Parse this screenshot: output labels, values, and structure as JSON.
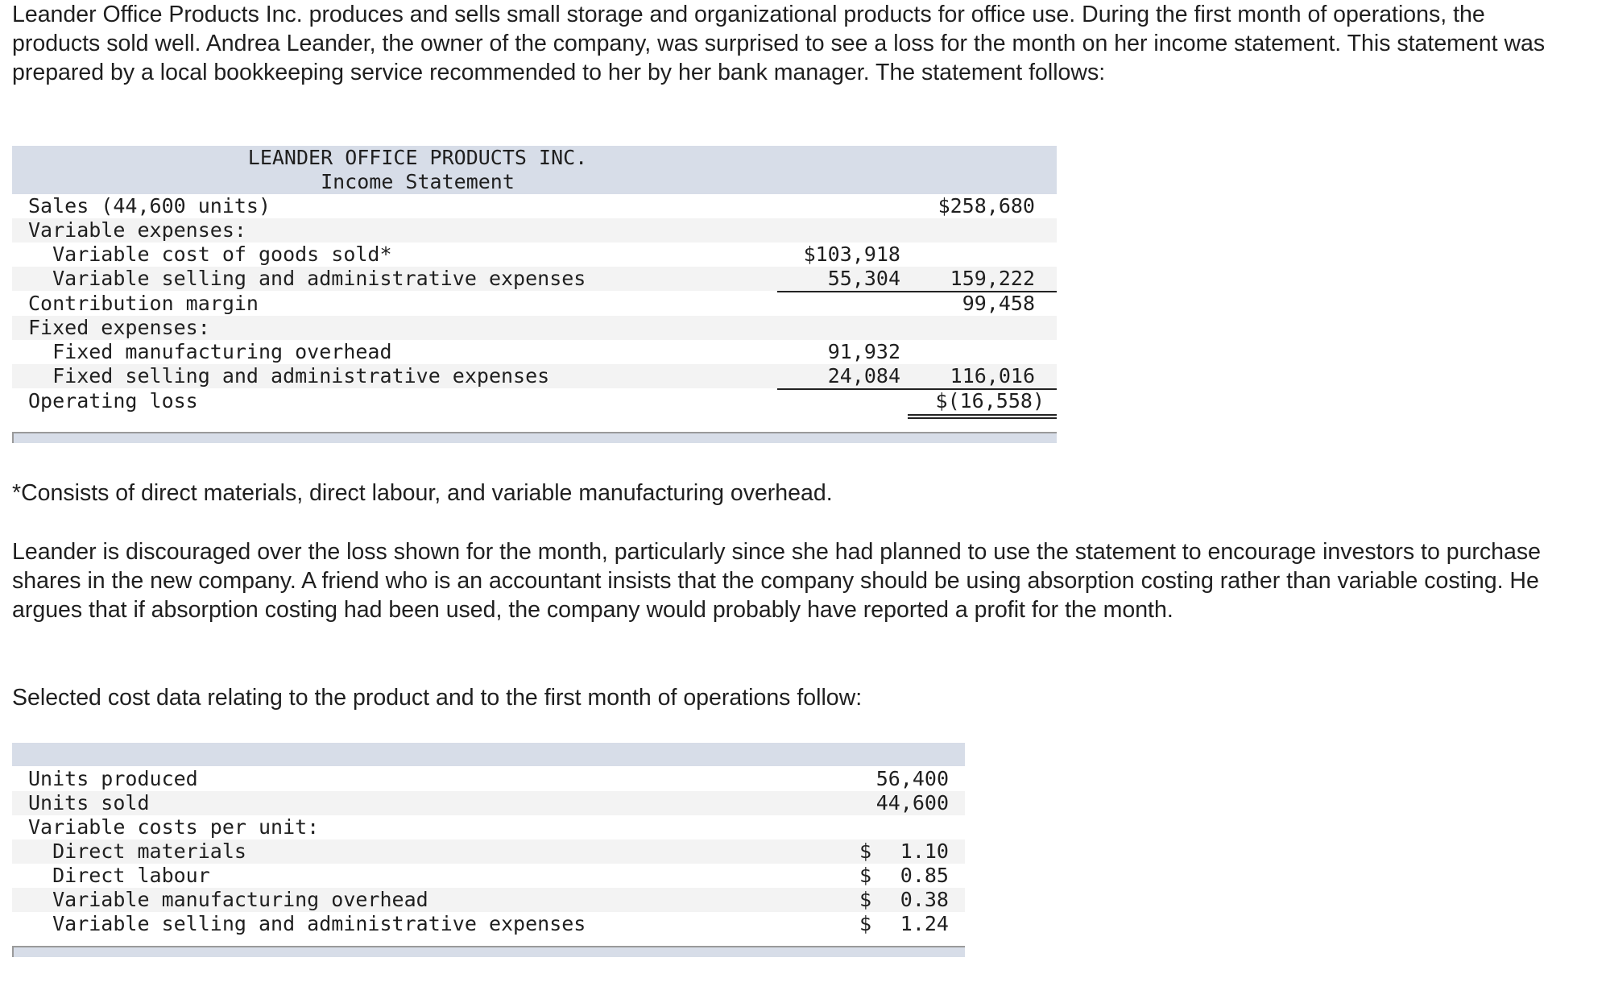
{
  "intro": "Leander Office Products Inc. produces and sells small storage and organizational products for office use. During the first month of operations, the products sold well. Andrea Leander, the owner of the company, was surprised to see a loss for the month on her income statement. This statement was prepared by a local bookkeeping service recommended to her by her bank manager. The statement follows:",
  "income_statement": {
    "company": "LEANDER OFFICE PRODUCTS INC.",
    "title": "Income Statement",
    "rows": [
      {
        "label": "Sales (44,600 units)",
        "c1": "",
        "c2": "$258,680"
      },
      {
        "label": "Variable expenses:",
        "c1": "",
        "c2": ""
      },
      {
        "label": "  Variable cost of goods sold*",
        "c1": "$103,918",
        "c2": ""
      },
      {
        "label": "  Variable selling and administrative expenses",
        "c1": "55,304",
        "c2": "159,222"
      },
      {
        "label": "Contribution margin",
        "c1": "",
        "c2": "99,458"
      },
      {
        "label": "Fixed expenses:",
        "c1": "",
        "c2": ""
      },
      {
        "label": "  Fixed manufacturing overhead",
        "c1": "91,932",
        "c2": ""
      },
      {
        "label": "  Fixed selling and administrative expenses",
        "c1": "24,084",
        "c2": "116,016"
      },
      {
        "label": "Operating loss",
        "c1": "",
        "c2": "$(16,558)"
      }
    ]
  },
  "footnote": "*Consists of direct materials, direct labour, and variable manufacturing overhead.",
  "discussion": "Leander is discouraged over the loss shown for the month, particularly since she had planned to use the statement to encourage investors to purchase shares in the new company. A friend who is an accountant insists that the company should be using absorption costing rather than variable costing. He argues that if absorption costing had been used, the company would probably have reported a profit for the month.",
  "cost_intro": "Selected cost data relating to the product and to the first month of operations follow:",
  "cost_data": {
    "rows": [
      {
        "label": "Units produced",
        "cur": "",
        "val": "56,400"
      },
      {
        "label": "Units sold",
        "cur": "",
        "val": "44,600"
      },
      {
        "label": "Variable costs per unit:",
        "cur": "",
        "val": ""
      },
      {
        "label": "  Direct materials",
        "cur": "$",
        "val": "1.10"
      },
      {
        "label": "  Direct labour",
        "cur": "$",
        "val": "0.85"
      },
      {
        "label": "  Variable manufacturing overhead",
        "cur": "$",
        "val": "0.38"
      },
      {
        "label": "  Variable selling and administrative expenses",
        "cur": "$",
        "val": "1.24"
      }
    ]
  }
}
